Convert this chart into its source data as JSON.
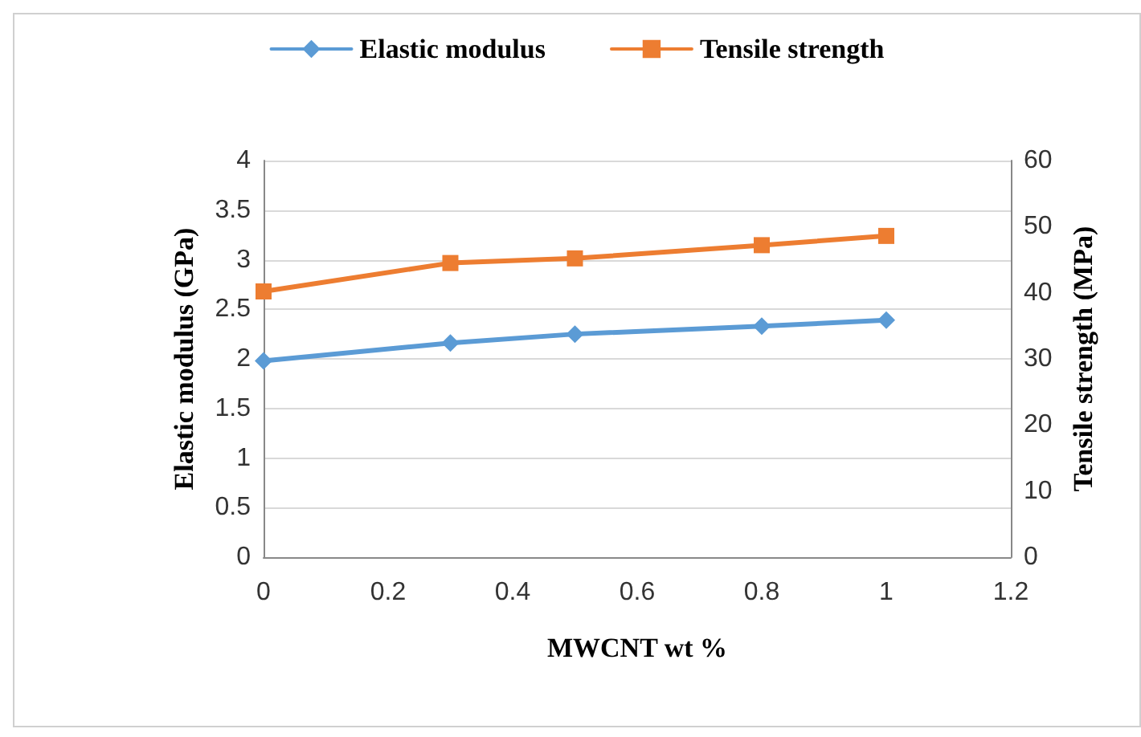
{
  "chart_data": {
    "type": "line",
    "xlabel": "MWCNT wt %",
    "ylabel": "Elastic modulus (GPa)",
    "y2label": "Tensile strength (MPa)",
    "x": [
      0,
      0.3,
      0.5,
      0.8,
      1
    ],
    "series": [
      {
        "name": "Elastic modulus",
        "color": "#5b9bd5",
        "marker": "diamond",
        "values": [
          1.98,
          2.16,
          2.25,
          2.33,
          2.39
        ]
      },
      {
        "name": "Tensile strength",
        "color": "#ed7d31",
        "marker": "square",
        "axis": "y2",
        "values": [
          40.2,
          44.5,
          45.2,
          47.2,
          48.6
        ]
      }
    ],
    "xlim": [
      0,
      1.2
    ],
    "xticks": [
      0,
      0.2,
      0.4,
      0.6,
      0.8,
      1,
      1.2
    ],
    "ylim": [
      0,
      4
    ],
    "yticks": [
      0,
      0.5,
      1,
      1.5,
      2,
      2.5,
      3,
      3.5,
      4
    ],
    "y2lim": [
      0,
      60
    ],
    "y2ticks": [
      0,
      10,
      20,
      30,
      40,
      50,
      60
    ],
    "grid": "y",
    "legend": "top",
    "line_style": "solid"
  }
}
